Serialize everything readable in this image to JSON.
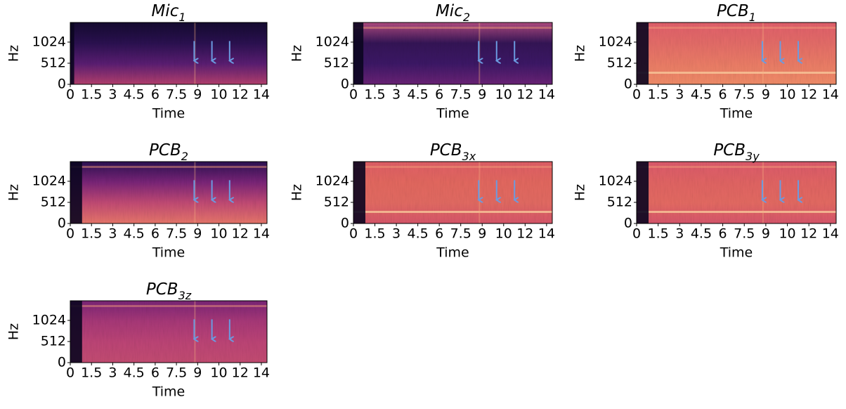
{
  "chart_data": [
    {
      "type": "spectrogram",
      "title": "Mic",
      "title_subscript": "1",
      "xlabel": "Time",
      "ylabel": "Hz",
      "colormap": "magma",
      "xlim": [
        0,
        13.9
      ],
      "ylim": [
        0,
        1500
      ],
      "xticks": [
        0,
        1.5,
        3,
        4.5,
        6,
        7.5,
        9,
        {
          "value": 10.5,
          "label": "10"
        },
        12,
        {
          "value": 13.5,
          "label": "14"
        }
      ],
      "yticks": [
        0,
        512,
        1024
      ]
    },
    {
      "type": "spectrogram",
      "title": "Mic",
      "title_subscript": "2",
      "xlabel": "Time",
      "ylabel": "Hz",
      "colormap": "magma",
      "xlim": [
        0,
        13.9
      ],
      "ylim": [
        0,
        1500
      ],
      "xticks": [
        0,
        1.5,
        3,
        4.5,
        6,
        7.5,
        9,
        {
          "value": 10.5,
          "label": "10"
        },
        12,
        {
          "value": 13.5,
          "label": "14"
        }
      ],
      "yticks": [
        0,
        512,
        1024
      ]
    },
    {
      "type": "spectrogram",
      "title": "PCB",
      "title_subscript": "1",
      "xlabel": "Time",
      "ylabel": "Hz",
      "colormap": "magma",
      "xlim": [
        0,
        13.9
      ],
      "ylim": [
        0,
        1500
      ],
      "xticks": [
        0,
        1.5,
        3,
        4.5,
        6,
        7.5,
        9,
        {
          "value": 10.5,
          "label": "10"
        },
        12,
        {
          "value": 13.5,
          "label": "14"
        }
      ],
      "yticks": [
        0,
        512,
        1024
      ]
    },
    {
      "type": "spectrogram",
      "title": "PCB",
      "title_subscript": "2",
      "xlabel": "Time",
      "ylabel": "Hz",
      "colormap": "magma",
      "xlim": [
        0,
        13.9
      ],
      "ylim": [
        0,
        1500
      ],
      "xticks": [
        0,
        1.5,
        3,
        4.5,
        6,
        7.5,
        9,
        {
          "value": 10.5,
          "label": "10"
        },
        12,
        {
          "value": 13.5,
          "label": "14"
        }
      ],
      "yticks": [
        0,
        512,
        1024
      ]
    },
    {
      "type": "spectrogram",
      "title": "PCB",
      "title_subscript": "3x",
      "xlabel": "Time",
      "ylabel": "Hz",
      "colormap": "magma",
      "xlim": [
        0,
        13.9
      ],
      "ylim": [
        0,
        1500
      ],
      "xticks": [
        0,
        1.5,
        3,
        4.5,
        6,
        7.5,
        9,
        {
          "value": 10.5,
          "label": "10"
        },
        12,
        {
          "value": 13.5,
          "label": "14"
        }
      ],
      "yticks": [
        0,
        512,
        1024
      ]
    },
    {
      "type": "spectrogram",
      "title": "PCB",
      "title_subscript": "3y",
      "xlabel": "Time",
      "ylabel": "Hz",
      "colormap": "magma",
      "xlim": [
        0,
        13.9
      ],
      "ylim": [
        0,
        1500
      ],
      "xticks": [
        0,
        1.5,
        3,
        4.5,
        6,
        7.5,
        9,
        {
          "value": 10.5,
          "label": "10"
        },
        12,
        {
          "value": 13.5,
          "label": "14"
        }
      ],
      "yticks": [
        0,
        512,
        1024
      ]
    },
    {
      "type": "spectrogram",
      "title": "PCB",
      "title_subscript": "3z",
      "xlabel": "Time",
      "ylabel": "Hz",
      "colormap": "magma",
      "xlim": [
        0,
        13.9
      ],
      "ylim": [
        0,
        1500
      ],
      "xticks": [
        0,
        1.5,
        3,
        4.5,
        6,
        7.5,
        9,
        {
          "value": 10.5,
          "label": "10"
        },
        12,
        {
          "value": 13.5,
          "label": "14"
        }
      ],
      "yticks": [
        0,
        512,
        1024
      ]
    }
  ]
}
